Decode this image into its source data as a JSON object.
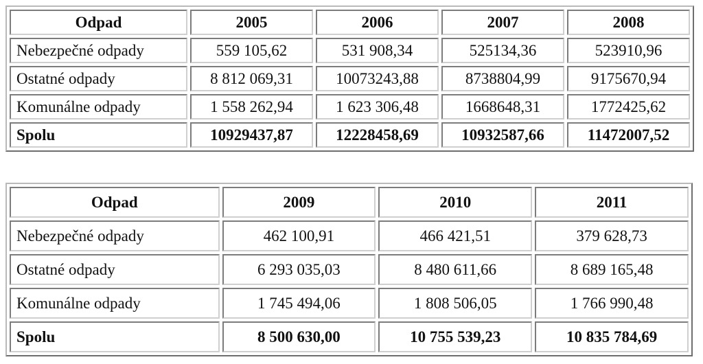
{
  "tables": [
    {
      "header": [
        "Odpad",
        "2005",
        "2006",
        "2007",
        "2008"
      ],
      "rows": [
        [
          "Nebezpečné odpady",
          "559 105,62",
          "531 908,34",
          "525134,36",
          "523910,96"
        ],
        [
          "Ostatné odpady",
          "8 812 069,31",
          "10073243,88",
          "8738804,99",
          "9175670,94"
        ],
        [
          "Komunálne odpady",
          "1 558 262,94",
          "1 623 306,48",
          "1668648,31",
          "1772425,62"
        ],
        [
          "Spolu",
          "10929437,87",
          "12228458,69",
          "10932587,66",
          "11472007,52"
        ]
      ]
    },
    {
      "header": [
        "Odpad",
        "2009",
        "2010",
        "2011"
      ],
      "rows": [
        [
          "Nebezpečné odpady",
          "462 100,91",
          "466 421,51",
          "379 628,73"
        ],
        [
          "Ostatné odpady",
          "6 293 035,03",
          "8 480 611,66",
          "8 689 165,48"
        ],
        [
          "Komunálne odpady",
          "1 745 494,06",
          "1 808 506,05",
          "1 766 990,48"
        ],
        [
          "Spolu",
          "8 500 630,00",
          "10 755 539,23",
          "10 835 784,69"
        ]
      ]
    }
  ]
}
